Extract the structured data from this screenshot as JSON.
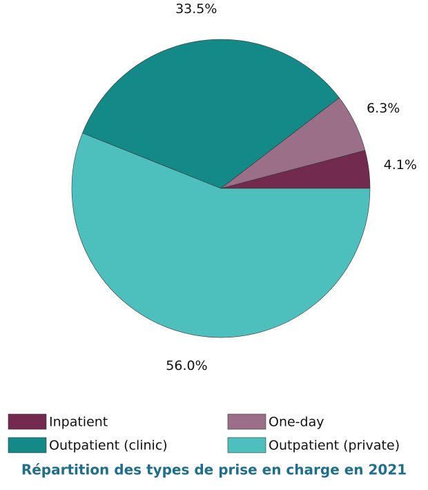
{
  "chart_data": {
    "type": "pie",
    "title": "Répartition des types de prise en charge en 2021",
    "categories": [
      "Inpatient",
      "One-day",
      "Outpatient (clinic)",
      "Outpatient (private)"
    ],
    "values": [
      4.1,
      6.3,
      33.5,
      56.0
    ],
    "value_labels": [
      "4.1%",
      "6.3%",
      "33.5%",
      "56.0%"
    ],
    "colors": [
      "#722a4f",
      "#9b6f87",
      "#138a88",
      "#4dbfbd"
    ],
    "legend": "bottom"
  }
}
